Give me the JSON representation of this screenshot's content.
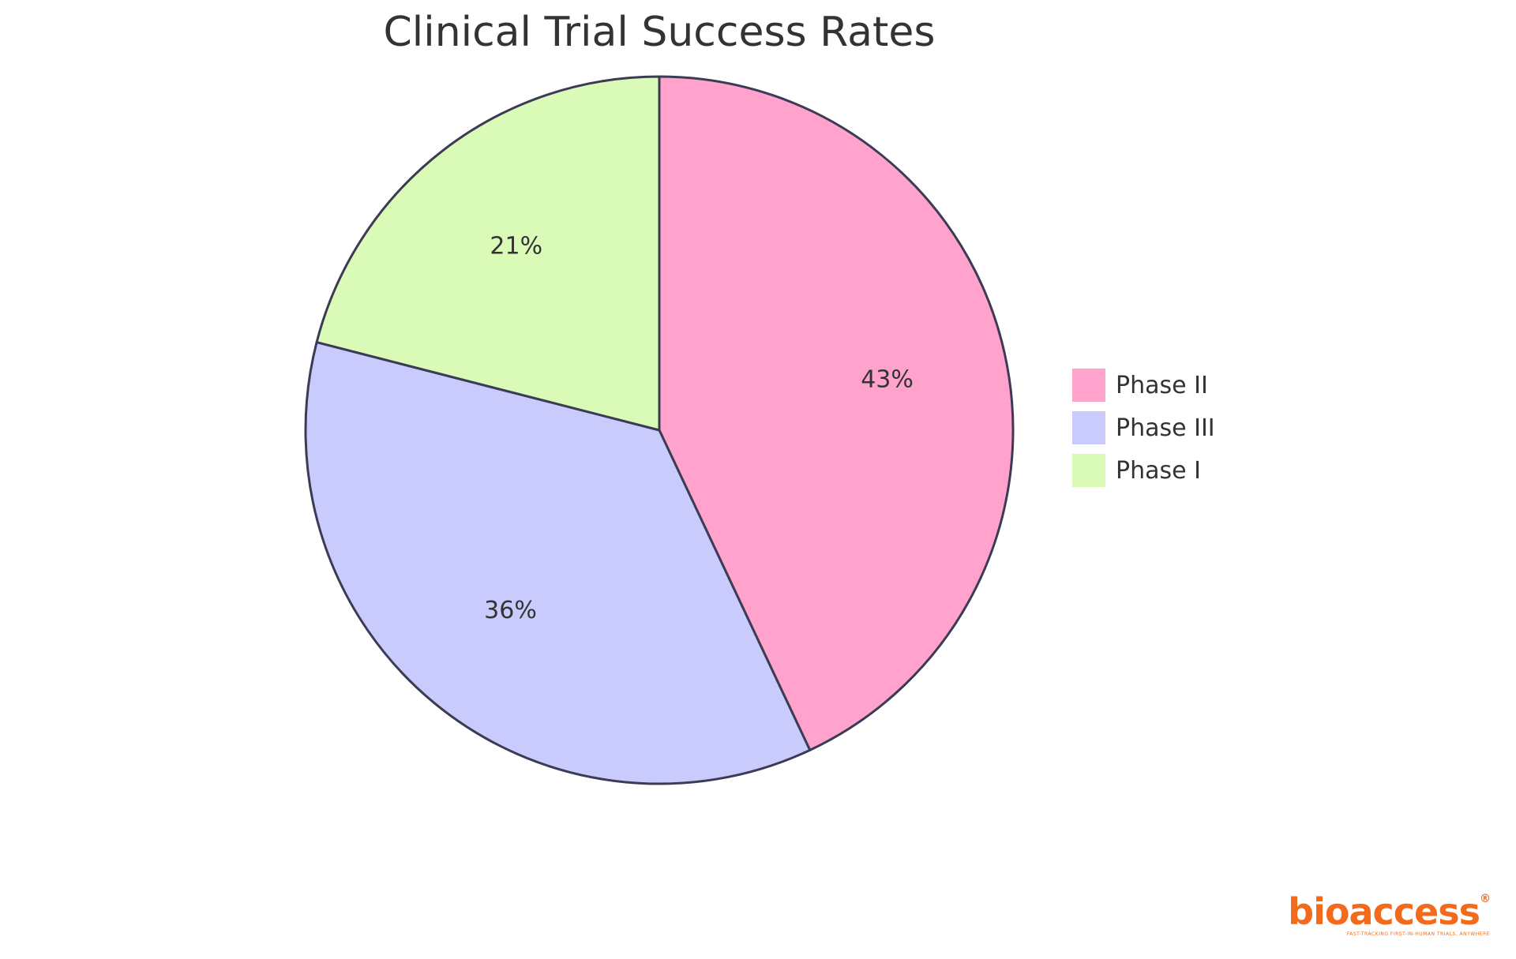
{
  "chart_data": {
    "type": "pie",
    "title": "Clinical Trial Success Rates",
    "slices": [
      {
        "label": "Phase II",
        "value": 43,
        "display": "43%",
        "color": "#ffa3cd"
      },
      {
        "label": "Phase III",
        "value": 36,
        "display": "36%",
        "color": "#cacbfd"
      },
      {
        "label": "Phase I",
        "value": 21,
        "display": "21%",
        "color": "#dafab8"
      }
    ],
    "legend_position": "right",
    "stroke_color": "#3b3b55"
  },
  "brand": {
    "name": "bioaccess",
    "mark": "®",
    "tagline": "FAST-TRACKING FIRST-IN-HUMAN TRIALS, ANYWHERE",
    "color": "#f26b1d"
  }
}
